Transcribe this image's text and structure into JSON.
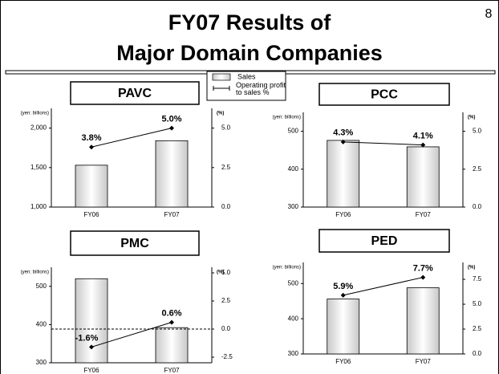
{
  "header": {
    "title_lines": [
      "FY07 Results of",
      "Major Domain Companies"
    ],
    "page": "8"
  },
  "chart_data": [
    {
      "type": "bar-line",
      "title": "PAVC",
      "y_label": "(yen: billions)",
      "y2_label": "(%)",
      "categories": [
        "FY06",
        "FY07"
      ],
      "series": [
        {
          "name": "Sales",
          "type": "bar",
          "color": "#c8c8c8",
          "values": [
            1530,
            1840
          ]
        },
        {
          "name": "Operating profit to sales %",
          "type": "line",
          "axis": "y2",
          "color": "#000000",
          "values": [
            3.8,
            5.0
          ],
          "value_labels": [
            "3.8%",
            "5.0%"
          ]
        }
      ],
      "ylim": [
        1000,
        2250
      ],
      "yticks": [
        {
          "value": 1000,
          "label": "1,000"
        },
        {
          "value": 1500,
          "label": "1,500"
        },
        {
          "value": 2000,
          "label": "2,000"
        }
      ],
      "y2lim": [
        0,
        6.25
      ],
      "y2ticks": [
        {
          "value": 0,
          "label": "0.0"
        },
        2.5,
        {
          "value": 5,
          "label": "5.0"
        }
      ]
    },
    {
      "type": "bar-line",
      "title": "PCC",
      "y_label": "(yen: billions)",
      "y2_label": "(%)",
      "categories": [
        "FY06",
        "FY07"
      ],
      "series": [
        {
          "name": "Sales",
          "type": "bar",
          "color": "#c8c8c8",
          "values": [
            476,
            459
          ]
        },
        {
          "name": "Operating profit to sales %",
          "type": "line",
          "axis": "y2",
          "color": "#000000",
          "values": [
            4.3,
            4.1
          ],
          "value_labels": [
            "4.3%",
            "4.1%"
          ]
        }
      ],
      "ylim": [
        300,
        550
      ],
      "yticks": [
        300,
        400,
        500
      ],
      "y2lim": [
        0,
        6.25
      ],
      "y2ticks": [
        {
          "value": 0,
          "label": "0.0"
        },
        2.5,
        {
          "value": 5,
          "label": "5.0"
        }
      ]
    },
    {
      "type": "bar-line",
      "title": "PMC",
      "y_label": "(yen: billions)",
      "y2_label": "(%)",
      "categories": [
        "FY06",
        "FY07"
      ],
      "series": [
        {
          "name": "Sales",
          "type": "bar",
          "color": "#c8c8c8",
          "values": [
            520,
            392
          ]
        },
        {
          "name": "Operating profit to sales %",
          "type": "line",
          "axis": "y2",
          "color": "#000000",
          "values": [
            -1.6,
            0.6
          ],
          "value_labels": [
            "-1.6%",
            "0.6%"
          ]
        }
      ],
      "ylim": [
        300,
        550
      ],
      "yticks": [
        300,
        400,
        500
      ],
      "y2lim": [
        -3,
        5.5
      ],
      "y2ticks": [
        -2.5,
        {
          "value": 0,
          "label": "0.0"
        },
        2.5,
        {
          "value": 5,
          "label": "5.0"
        }
      ],
      "zero_line": true
    },
    {
      "type": "bar-line",
      "title": "PED",
      "y_label": "(yen: billions)",
      "y2_label": "(%)",
      "categories": [
        "FY06",
        "FY07"
      ],
      "series": [
        {
          "name": "Sales",
          "type": "bar",
          "color": "#c8c8c8",
          "values": [
            456,
            488
          ]
        },
        {
          "name": "Operating profit to sales %",
          "type": "line",
          "axis": "y2",
          "color": "#000000",
          "values": [
            5.9,
            7.7
          ],
          "value_labels": [
            "5.9%",
            "7.7%"
          ]
        }
      ],
      "ylim": [
        300,
        560
      ],
      "yticks": [
        300,
        400,
        500
      ],
      "y2lim": [
        0,
        9.2
      ],
      "y2ticks": [
        {
          "value": 0,
          "label": "0.0"
        },
        2.5,
        {
          "value": 5,
          "label": "5.0"
        },
        7.5
      ]
    }
  ]
}
